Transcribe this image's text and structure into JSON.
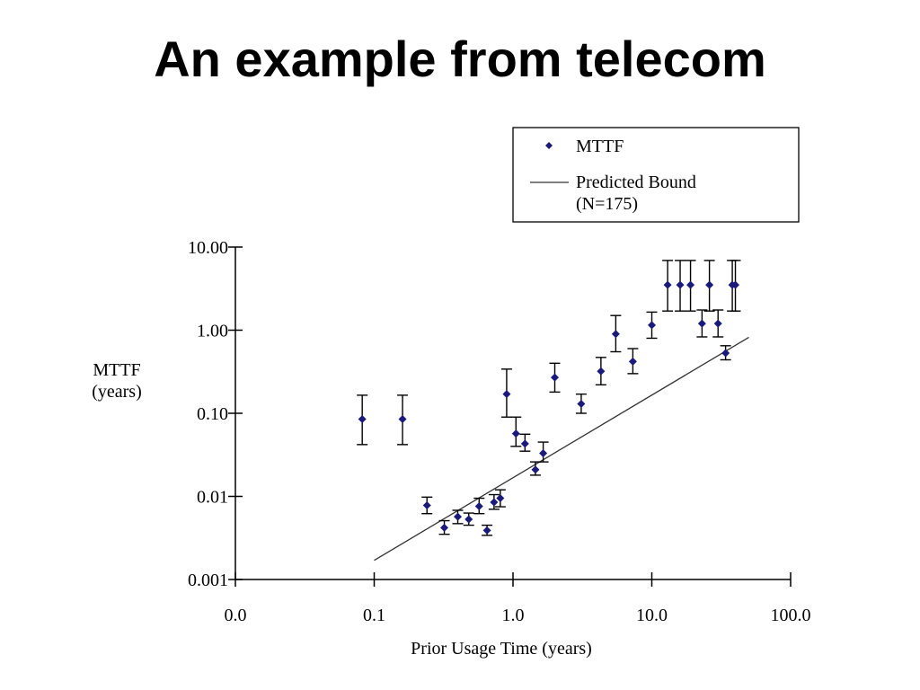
{
  "slide": {
    "title": "An example from telecom"
  },
  "chart_data": {
    "type": "scatter",
    "xscale": "log",
    "yscale": "log",
    "xlim": [
      0.01,
      100
    ],
    "ylim": [
      0.001,
      10
    ],
    "x_ticks": [
      {
        "value": 0.01,
        "label": "0.0"
      },
      {
        "value": 0.1,
        "label": "0.1"
      },
      {
        "value": 1,
        "label": "1.0"
      },
      {
        "value": 10,
        "label": "10.0"
      },
      {
        "value": 100,
        "label": "100.0"
      }
    ],
    "y_ticks": [
      {
        "value": 10,
        "label": "10.00"
      },
      {
        "value": 1,
        "label": "1.00"
      },
      {
        "value": 0.1,
        "label": "0.10"
      },
      {
        "value": 0.01,
        "label": "0.01"
      },
      {
        "value": 0.001,
        "label": "0.001"
      }
    ],
    "xlabel": "Prior Usage Time (years)",
    "ylabel_lines": [
      "MTTF",
      "(years)"
    ],
    "legend": {
      "position": "top-right",
      "entries": [
        {
          "label_lines": [
            "MTTF"
          ],
          "marker": "diamond"
        },
        {
          "label_lines": [
            "Predicted Bound",
            "(N=175)"
          ],
          "marker": "line"
        }
      ]
    },
    "colors": {
      "points": "#1a1a7a",
      "error_bars": "#000000",
      "bound_line": "#333333"
    },
    "series": [
      {
        "name": "MTTF",
        "points": [
          {
            "x": 0.082,
            "y": 0.085,
            "lo": 0.042,
            "hi": 0.165
          },
          {
            "x": 0.16,
            "y": 0.085,
            "lo": 0.042,
            "hi": 0.165
          },
          {
            "x": 0.24,
            "y": 0.0078,
            "lo": 0.0062,
            "hi": 0.0098
          },
          {
            "x": 0.32,
            "y": 0.0042,
            "lo": 0.0035,
            "hi": 0.0051
          },
          {
            "x": 0.4,
            "y": 0.0057,
            "lo": 0.0047,
            "hi": 0.0068
          },
          {
            "x": 0.48,
            "y": 0.0053,
            "lo": 0.0045,
            "hi": 0.0063
          },
          {
            "x": 0.57,
            "y": 0.0076,
            "lo": 0.0062,
            "hi": 0.0095
          },
          {
            "x": 0.65,
            "y": 0.0039,
            "lo": 0.0034,
            "hi": 0.0045
          },
          {
            "x": 0.73,
            "y": 0.0085,
            "lo": 0.007,
            "hi": 0.0105
          },
          {
            "x": 0.81,
            "y": 0.0095,
            "lo": 0.0075,
            "hi": 0.012
          },
          {
            "x": 0.9,
            "y": 0.17,
            "lo": 0.09,
            "hi": 0.34
          },
          {
            "x": 1.05,
            "y": 0.057,
            "lo": 0.04,
            "hi": 0.09
          },
          {
            "x": 1.22,
            "y": 0.043,
            "lo": 0.035,
            "hi": 0.056
          },
          {
            "x": 1.45,
            "y": 0.021,
            "lo": 0.018,
            "hi": 0.026
          },
          {
            "x": 1.65,
            "y": 0.033,
            "lo": 0.026,
            "hi": 0.045
          },
          {
            "x": 2.0,
            "y": 0.27,
            "lo": 0.18,
            "hi": 0.4
          },
          {
            "x": 3.1,
            "y": 0.13,
            "lo": 0.1,
            "hi": 0.17
          },
          {
            "x": 4.3,
            "y": 0.32,
            "lo": 0.22,
            "hi": 0.47
          },
          {
            "x": 5.5,
            "y": 0.9,
            "lo": 0.55,
            "hi": 1.5
          },
          {
            "x": 7.3,
            "y": 0.42,
            "lo": 0.3,
            "hi": 0.6
          },
          {
            "x": 10.0,
            "y": 1.15,
            "lo": 0.8,
            "hi": 1.65
          },
          {
            "x": 13.0,
            "y": 3.5,
            "lo": 1.7,
            "hi": 6.9
          },
          {
            "x": 16.0,
            "y": 3.5,
            "lo": 1.7,
            "hi": 6.9
          },
          {
            "x": 19.0,
            "y": 3.5,
            "lo": 1.7,
            "hi": 6.9
          },
          {
            "x": 23.0,
            "y": 1.2,
            "lo": 0.83,
            "hi": 1.75
          },
          {
            "x": 26.0,
            "y": 3.5,
            "lo": 1.7,
            "hi": 6.9
          },
          {
            "x": 30.0,
            "y": 1.2,
            "lo": 0.83,
            "hi": 1.75
          },
          {
            "x": 34.0,
            "y": 0.53,
            "lo": 0.44,
            "hi": 0.65
          },
          {
            "x": 38.0,
            "y": 3.5,
            "lo": 1.7,
            "hi": 6.9
          },
          {
            "x": 40.0,
            "y": 3.5,
            "lo": 1.7,
            "hi": 6.9
          }
        ]
      },
      {
        "name": "Predicted Bound",
        "line": [
          {
            "x": 0.1,
            "y": 0.0017
          },
          {
            "x": 50,
            "y": 0.82
          }
        ]
      }
    ]
  }
}
